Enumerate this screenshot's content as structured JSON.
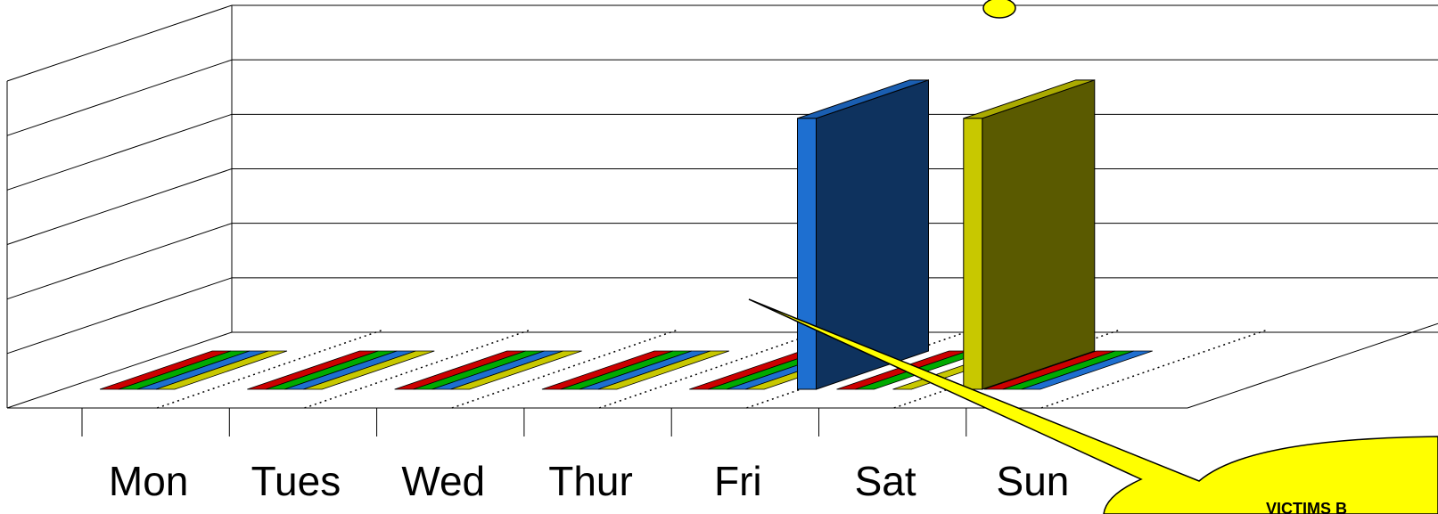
{
  "chart_data": {
    "type": "bar",
    "style": "3d-clustered",
    "categories": [
      "Mon",
      "Tues",
      "Wed",
      "Thur",
      "Fri",
      "Sat",
      "Sun"
    ],
    "ylim": [
      0,
      6
    ],
    "series": [
      {
        "color": "#cc0000",
        "values": [
          0,
          0,
          0,
          0,
          0,
          0,
          0
        ]
      },
      {
        "color": "#00aa00",
        "values": [
          0,
          0,
          0,
          0,
          0,
          0,
          0
        ]
      },
      {
        "color": "#1e6fd0",
        "values": [
          0,
          0,
          0,
          0,
          0,
          5,
          0
        ]
      },
      {
        "color": "#c8c800",
        "values": [
          0,
          0,
          0,
          0,
          0,
          0,
          5
        ]
      }
    ],
    "grid": true,
    "callout": {
      "text": "VICTIMS B"
    }
  }
}
